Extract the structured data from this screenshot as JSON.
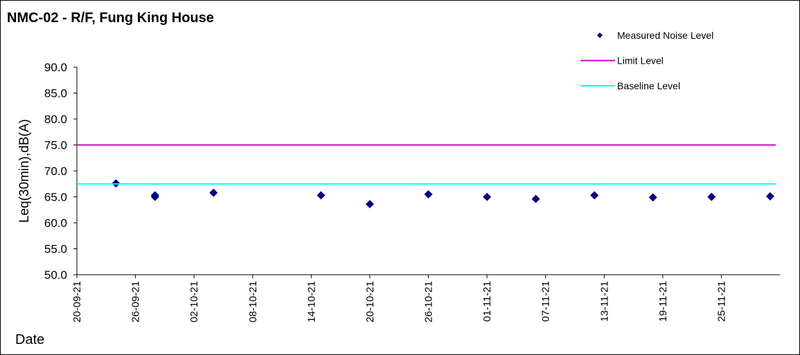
{
  "chart_data": {
    "type": "scatter",
    "title": "NMC-02 - R/F, Fung King House",
    "ylabel": "Leq(30min),dB(A)",
    "xlabel": "Date",
    "series": [
      {
        "name": "Measured Noise Level",
        "color": "#000080",
        "x": [
          "24-09-21",
          "28-09-21",
          "28-09-21",
          "04-10-21",
          "15-10-21",
          "20-10-21",
          "26-10-21",
          "01-11-21",
          "06-11-21",
          "12-11-21",
          "18-11-21",
          "24-11-21",
          "30-11-21"
        ],
        "values": [
          67.6,
          65.3,
          65.0,
          65.8,
          65.3,
          63.6,
          65.5,
          65.0,
          64.6,
          65.3,
          64.9,
          65.0,
          65.1
        ]
      },
      {
        "name": "Limit Level",
        "color": "#cc00cc",
        "value": 75
      },
      {
        "name": "Baseline Level",
        "color": "#00ffff",
        "value": 67.5
      }
    ],
    "xlim": [
      "20-09-21",
      "01-12-21"
    ],
    "xticks": [
      "20-09-21",
      "26-09-21",
      "02-10-21",
      "08-10-21",
      "14-10-21",
      "20-10-21",
      "26-10-21",
      "01-11-21",
      "07-11-21",
      "13-11-21",
      "19-11-21",
      "25-11-21"
    ],
    "ylim": [
      50,
      90
    ],
    "yticks": [
      {
        "value": 50,
        "label": "50.0"
      },
      {
        "value": 55,
        "label": "55.0"
      },
      {
        "value": 60,
        "label": "60.0"
      },
      {
        "value": 65,
        "label": "65.0"
      },
      {
        "value": 70,
        "label": "70.0"
      },
      {
        "value": 75,
        "label": "75.0"
      },
      {
        "value": 80,
        "label": "80.0"
      },
      {
        "value": 85,
        "label": "85.0"
      },
      {
        "value": 90,
        "label": "90.0"
      }
    ],
    "legend": "top-right"
  }
}
